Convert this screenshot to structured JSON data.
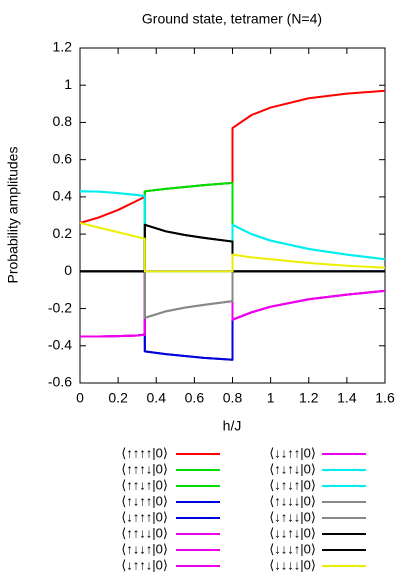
{
  "chart_data": {
    "type": "line",
    "title": "Ground state, tetramer (N=4)",
    "x_label": "h/J",
    "y_label": "Probability amplitudes",
    "x": [
      0,
      0.1,
      0.2,
      0.3,
      0.34,
      0.34,
      0.45,
      0.55,
      0.65,
      0.8,
      0.8,
      0.9,
      1.0,
      1.2,
      1.4,
      1.6
    ],
    "xlim": [
      0,
      1.6
    ],
    "xticks": [
      0,
      0.2,
      0.4,
      0.6,
      0.8,
      1,
      1.2,
      1.4,
      1.6
    ],
    "ylim": [
      -0.6,
      1.2
    ],
    "yticks": [
      -0.6,
      -0.4,
      -0.2,
      0,
      0.2,
      0.4,
      0.6,
      0.8,
      1,
      1.2
    ],
    "grid": false,
    "series": [
      {
        "name": "⟨↑↑↑↑|0⟩",
        "color": "#ff0000",
        "values": [
          0.26,
          0.29,
          0.33,
          0.38,
          0.4,
          0.43,
          0.443,
          0.453,
          0.463,
          0.475,
          0.77,
          0.84,
          0.88,
          0.93,
          0.955,
          0.97
        ]
      },
      {
        "name": "⟨↑↑↑↓|0⟩",
        "color": "#00dd00",
        "values": [
          0,
          0,
          0,
          0,
          0,
          0.43,
          0.443,
          0.453,
          0.463,
          0.475,
          0,
          0,
          0,
          0,
          0,
          0
        ]
      },
      {
        "name": "⟨↑↑↓↑|0⟩",
        "color": "#00dd00",
        "values": [
          0,
          0,
          0,
          0,
          0,
          0.43,
          0.443,
          0.453,
          0.463,
          0.475,
          0,
          0,
          0,
          0,
          0,
          0
        ]
      },
      {
        "name": "⟨↑↓↑↑|0⟩",
        "color": "#0000dd",
        "values": [
          0,
          0,
          0,
          0,
          0,
          -0.43,
          -0.445,
          -0.455,
          -0.465,
          -0.475,
          0,
          0,
          0,
          0,
          0,
          0
        ]
      },
      {
        "name": "⟨↓↑↑↑|0⟩",
        "color": "#0000dd",
        "values": [
          0,
          0,
          0,
          0,
          0,
          -0.43,
          -0.445,
          -0.455,
          -0.465,
          -0.475,
          0,
          0,
          0,
          0,
          0,
          0
        ]
      },
      {
        "name": "⟨↑↑↓↓|0⟩",
        "color": "#ee00ee",
        "values": [
          -0.35,
          -0.35,
          -0.348,
          -0.345,
          -0.34,
          0,
          0,
          0,
          0,
          0,
          -0.26,
          -0.22,
          -0.19,
          -0.15,
          -0.125,
          -0.105
        ]
      },
      {
        "name": "⟨↑↓↓↑|0⟩",
        "color": "#ee00ee",
        "values": [
          -0.35,
          -0.35,
          -0.348,
          -0.345,
          -0.34,
          0,
          0,
          0,
          0,
          0,
          -0.26,
          -0.22,
          -0.19,
          -0.15,
          -0.125,
          -0.105
        ]
      },
      {
        "name": "⟨↓↑↑↓|0⟩",
        "color": "#ee00ee",
        "values": [
          -0.35,
          -0.35,
          -0.348,
          -0.345,
          -0.34,
          0,
          0,
          0,
          0,
          0,
          -0.26,
          -0.22,
          -0.19,
          -0.15,
          -0.125,
          -0.105
        ]
      },
      {
        "name": "⟨↓↓↑↑|0⟩",
        "color": "#ee00ee",
        "values": [
          -0.35,
          -0.35,
          -0.348,
          -0.345,
          -0.34,
          0,
          0,
          0,
          0,
          0,
          -0.26,
          -0.22,
          -0.19,
          -0.15,
          -0.125,
          -0.105
        ]
      },
      {
        "name": "⟨↑↓↑↓|0⟩",
        "color": "#00eeee",
        "values": [
          0.43,
          0.428,
          0.42,
          0.41,
          0.405,
          0,
          0,
          0,
          0,
          0,
          0.25,
          0.2,
          0.165,
          0.12,
          0.09,
          0.065
        ]
      },
      {
        "name": "⟨↓↑↓↑|0⟩",
        "color": "#00eeee",
        "values": [
          0.43,
          0.428,
          0.42,
          0.41,
          0.405,
          0,
          0,
          0,
          0,
          0,
          0.25,
          0.2,
          0.165,
          0.12,
          0.09,
          0.065
        ]
      },
      {
        "name": "⟨↑↓↓↓|0⟩",
        "color": "#888888",
        "values": [
          0,
          0,
          0,
          0,
          0,
          -0.25,
          -0.215,
          -0.195,
          -0.18,
          -0.16,
          0,
          0,
          0,
          0,
          0,
          0
        ]
      },
      {
        "name": "⟨↓↑↓↓|0⟩",
        "color": "#888888",
        "values": [
          0,
          0,
          0,
          0,
          0,
          -0.25,
          -0.215,
          -0.195,
          -0.18,
          -0.16,
          0,
          0,
          0,
          0,
          0,
          0
        ]
      },
      {
        "name": "⟨↓↓↑↓|0⟩",
        "color": "#000000",
        "values": [
          0,
          0,
          0,
          0,
          0,
          0.25,
          0.215,
          0.195,
          0.18,
          0.16,
          0,
          0,
          0,
          0,
          0,
          0
        ]
      },
      {
        "name": "⟨↓↓↓↑|0⟩",
        "color": "#000000",
        "values": [
          0,
          0,
          0,
          0,
          0,
          0.25,
          0.215,
          0.195,
          0.18,
          0.16,
          0,
          0,
          0,
          0,
          0,
          0
        ]
      },
      {
        "name": "⟨↓↓↓↓|0⟩",
        "color": "#eeee00",
        "values": [
          0.26,
          0.235,
          0.21,
          0.185,
          0.175,
          0,
          0,
          0,
          0,
          0,
          0.09,
          0.075,
          0.065,
          0.045,
          0.03,
          0.02
        ]
      }
    ]
  }
}
